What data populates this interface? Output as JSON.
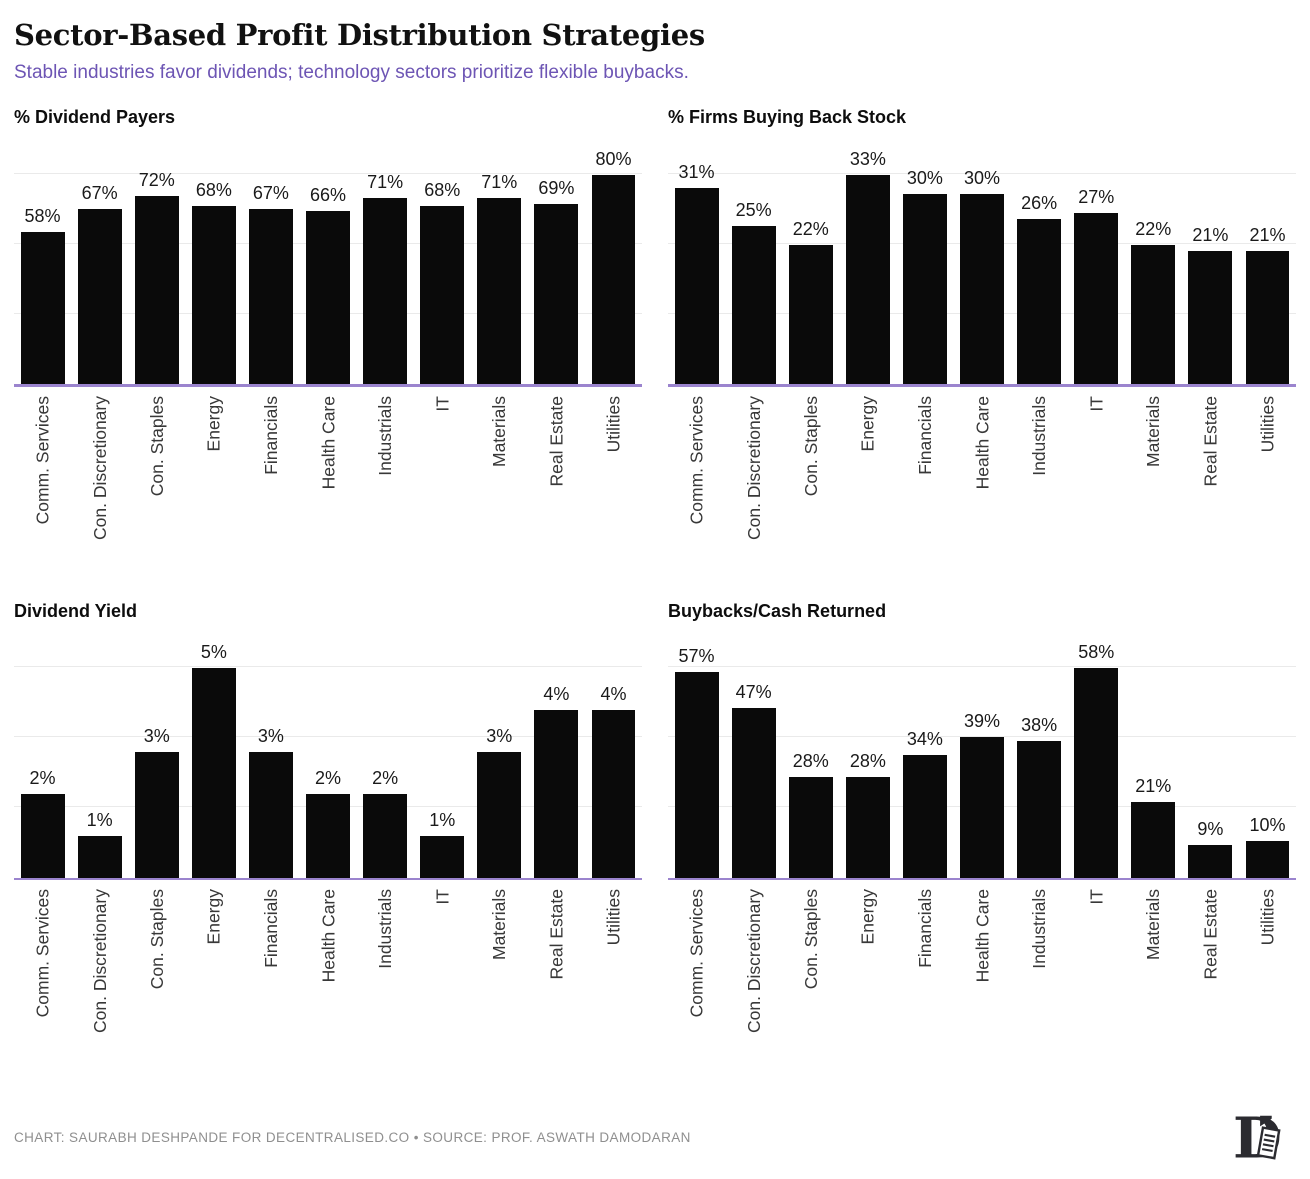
{
  "header": {
    "title": "Sector-Based Profit Distribution Strategies",
    "subtitle": "Stable industries favor dividends; technology sectors prioritize flexible buybacks."
  },
  "chart_data": [
    {
      "type": "bar",
      "title": "% Dividend Payers",
      "categories": [
        "Comm. Services",
        "Con. Discretionary",
        "Con. Staples",
        "Energy",
        "Financials",
        "Health Care",
        "Industrials",
        "IT",
        "Materials",
        "Real Estate",
        "Utilities"
      ],
      "values": [
        58,
        67,
        72,
        68,
        67,
        66,
        71,
        68,
        71,
        69,
        80
      ],
      "unit": "%",
      "ylim": [
        0,
        95
      ],
      "grid": true,
      "legend": "none"
    },
    {
      "type": "bar",
      "title": "% Firms Buying Back Stock",
      "categories": [
        "Comm. Services",
        "Con. Discretionary",
        "Con. Staples",
        "Energy",
        "Financials",
        "Health Care",
        "Industrials",
        "IT",
        "Materials",
        "Real Estate",
        "Utilities"
      ],
      "values": [
        31,
        25,
        22,
        33,
        30,
        30,
        26,
        27,
        22,
        21,
        21
      ],
      "unit": "%",
      "ylim": [
        0,
        39
      ],
      "grid": true,
      "legend": "none"
    },
    {
      "type": "bar",
      "title": "Dividend Yield",
      "categories": [
        "Comm. Services",
        "Con. Discretionary",
        "Con. Staples",
        "Energy",
        "Financials",
        "Health Care",
        "Industrials",
        "IT",
        "Materials",
        "Real Estate",
        "Utilities"
      ],
      "values": [
        2,
        1,
        3,
        5,
        3,
        2,
        2,
        1,
        3,
        4,
        4
      ],
      "unit": "%",
      "ylim": [
        0,
        6
      ],
      "grid": true,
      "legend": "none"
    },
    {
      "type": "bar",
      "title": "Buybacks/Cash Returned",
      "categories": [
        "Comm. Services",
        "Con. Discretionary",
        "Con. Staples",
        "Energy",
        "Financials",
        "Health Care",
        "Industrials",
        "IT",
        "Materials",
        "Real Estate",
        "Utilities"
      ],
      "values": [
        57,
        47,
        28,
        28,
        34,
        39,
        38,
        58,
        21,
        9,
        10
      ],
      "unit": "%",
      "ylim": [
        0,
        69
      ],
      "grid": true,
      "legend": "none"
    }
  ],
  "footer": {
    "credit": "CHART: SAURABH DESHPANDE FOR DECENTRALISED.CO • SOURCE: PROF. ASWATH DAMODARAN",
    "logo_name": "decentralised-logo"
  },
  "colors": {
    "bar": "#0a0a0a",
    "baseline": "#9b84ce",
    "subtitle": "#6d55b4",
    "grid": "#eaeaea",
    "title": "#111111",
    "credit": "#8f8f8f"
  }
}
